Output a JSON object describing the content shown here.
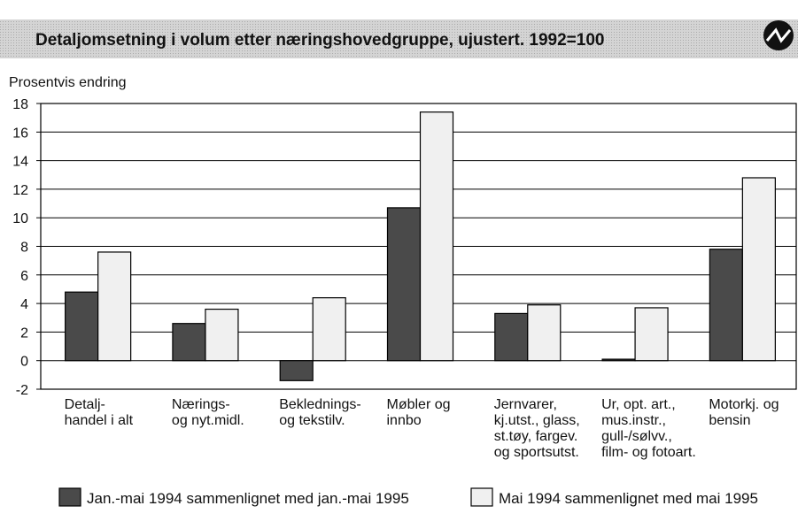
{
  "chart_data": {
    "type": "bar",
    "title": "Detaljomsetning i volum etter næringshovedgruppe, ujustert. 1992=100",
    "y_label": "Prosentvis endring",
    "categories": [
      [
        "Detalj-",
        "handel i alt"
      ],
      [
        "Nærings-",
        "og nyt.midl."
      ],
      [
        "Beklednings-",
        "og tekstilv."
      ],
      [
        "Møbler og",
        "innbo"
      ],
      [
        "Jernvarer,",
        "kj.utst., glass,",
        "st.tøy, fargev.",
        "og sportsutst."
      ],
      [
        "Ur, opt. art.,",
        "mus.instr.,",
        "gull-/sølvv.,",
        "film- og fotoart."
      ],
      [
        "Motorkj. og",
        "bensin"
      ]
    ],
    "series": [
      {
        "name": "Jan.-mai 1994 sammenlignet med jan.-mai 1995",
        "color": "#4a4a4a",
        "values": [
          4.8,
          2.6,
          -1.4,
          10.7,
          3.3,
          0.1,
          7.8
        ]
      },
      {
        "name": "Mai 1994 sammenlignet med mai 1995",
        "color": "#f0f0f0",
        "values": [
          7.6,
          3.6,
          4.4,
          17.4,
          3.9,
          3.7,
          12.8
        ]
      }
    ],
    "ylim": [
      -2,
      18
    ],
    "yticks": [
      -2,
      0,
      2,
      4,
      6,
      8,
      10,
      12,
      14,
      16,
      18
    ],
    "grid": true
  }
}
